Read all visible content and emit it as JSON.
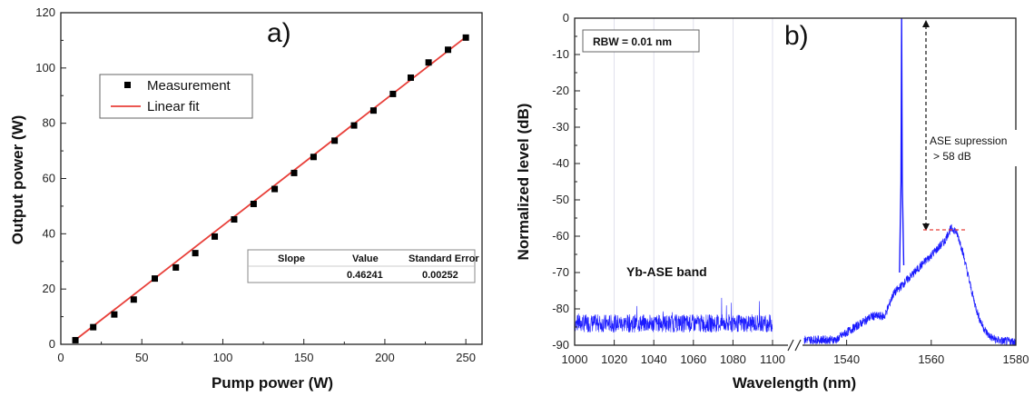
{
  "chart_data": [
    {
      "type": "scatter",
      "panel_label": "a)",
      "xlabel": "Pump power (W)",
      "ylabel": "Output power (W)",
      "xlim": [
        0,
        260
      ],
      "ylim": [
        0,
        120
      ],
      "xticks": [
        0,
        50,
        100,
        150,
        200,
        250
      ],
      "yticks": [
        0,
        20,
        40,
        60,
        80,
        100,
        120
      ],
      "series": [
        {
          "name": "Measurement",
          "marker": "square",
          "color": "#000000",
          "x": [
            9,
            20,
            33,
            45,
            58,
            71,
            83,
            95,
            107,
            119,
            132,
            144,
            156,
            169,
            181,
            193,
            205,
            216,
            227,
            239,
            250
          ],
          "y": [
            1.5,
            6.2,
            10.8,
            16.2,
            23.8,
            27.8,
            33,
            39,
            45.2,
            50.8,
            56.2,
            62,
            67.8,
            73.7,
            79.2,
            84.6,
            90.6,
            96.5,
            102,
            106.6,
            111
          ]
        },
        {
          "name": "Linear fit",
          "type": "line",
          "color": "#e8403a",
          "x": [
            9,
            250
          ],
          "y": [
            1.6,
            111.2
          ]
        }
      ],
      "fit_table": {
        "headers": [
          "Slope",
          "Value",
          "Standard Error"
        ],
        "row": [
          "",
          "0.46241",
          "0.00252"
        ]
      },
      "legend": "upper-left"
    },
    {
      "type": "line",
      "panel_label": "b)",
      "xlabel": "Wavelength (nm)",
      "ylabel": "Normalized level (dB)",
      "ylim": [
        -90,
        0
      ],
      "yticks": [
        0,
        -10,
        -20,
        -30,
        -40,
        -50,
        -60,
        -70,
        -80,
        -90
      ],
      "xticks_left": [
        "1000",
        "1020",
        "1040",
        "1060",
        "1080",
        "1100"
      ],
      "xticks_right": [
        "1540",
        "1560",
        "1580"
      ],
      "xlim_left": [
        1000,
        1100
      ],
      "xlim_right": [
        1530,
        1580
      ],
      "broken_axis": true,
      "series_color": "#1a1aff",
      "peak_nm": 1553,
      "ase_peak_nm": 1565,
      "ase_peak_level_db": -58,
      "noise_floor_db": -84,
      "annotations": {
        "rbw": "RBW = 0.01 nm",
        "suppression_line1": "ASE supression",
        "suppression_line2": "> 58 dB",
        "band": "Yb-ASE band"
      }
    }
  ]
}
